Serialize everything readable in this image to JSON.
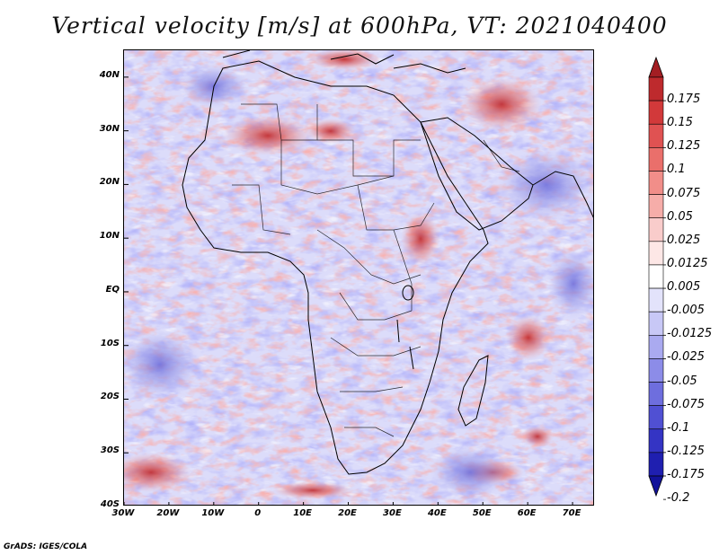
{
  "title": "Vertical velocity [m/s] at 600hPa, VT: 2021040400",
  "map": {
    "variable": "vertical velocity",
    "level": "600hPa",
    "valid_time": "2021040400",
    "region": "Africa",
    "lon_range": [
      -30,
      75
    ],
    "lat_range": [
      -40,
      45
    ],
    "lat_ticks": [
      {
        "label": "40N",
        "value": 40
      },
      {
        "label": "30N",
        "value": 30
      },
      {
        "label": "20N",
        "value": 20
      },
      {
        "label": "10N",
        "value": 10
      },
      {
        "label": "EQ",
        "value": 0
      },
      {
        "label": "10S",
        "value": -10
      },
      {
        "label": "20S",
        "value": -20
      },
      {
        "label": "30S",
        "value": -30
      },
      {
        "label": "40S",
        "value": -40
      }
    ],
    "lon_ticks": [
      {
        "label": "30W",
        "value": -30
      },
      {
        "label": "20W",
        "value": -20
      },
      {
        "label": "10W",
        "value": -10
      },
      {
        "label": "0",
        "value": 0
      },
      {
        "label": "10E",
        "value": 10
      },
      {
        "label": "20E",
        "value": 20
      },
      {
        "label": "30E",
        "value": 30
      },
      {
        "label": "40E",
        "value": 40
      },
      {
        "label": "50E",
        "value": 50
      },
      {
        "label": "60E",
        "value": 60
      },
      {
        "label": "70E",
        "value": 70
      }
    ]
  },
  "colorbar": {
    "labels": [
      "0.175",
      "0.15",
      "0.125",
      "0.1",
      "0.075",
      "0.05",
      "0.025",
      "0.0125",
      "0.005",
      "-0.005",
      "-0.0125",
      "-0.025",
      "-0.05",
      "-0.075",
      "-0.1",
      "-0.125",
      "-0.175",
      "-0.2"
    ],
    "colors": [
      "#a31e23",
      "#be2a2d",
      "#d2393a",
      "#e05252",
      "#ea6f6b",
      "#f18e89",
      "#f6ada9",
      "#f9cccb",
      "#fde7e6",
      "#ffffff",
      "#e3e3fb",
      "#c8c8f6",
      "#aaaaf0",
      "#8c8ce8",
      "#6e6ede",
      "#5050d3",
      "#3434c4",
      "#1f1fb0",
      "#12129a"
    ]
  },
  "footer": "GrADS: IGES/COLA"
}
